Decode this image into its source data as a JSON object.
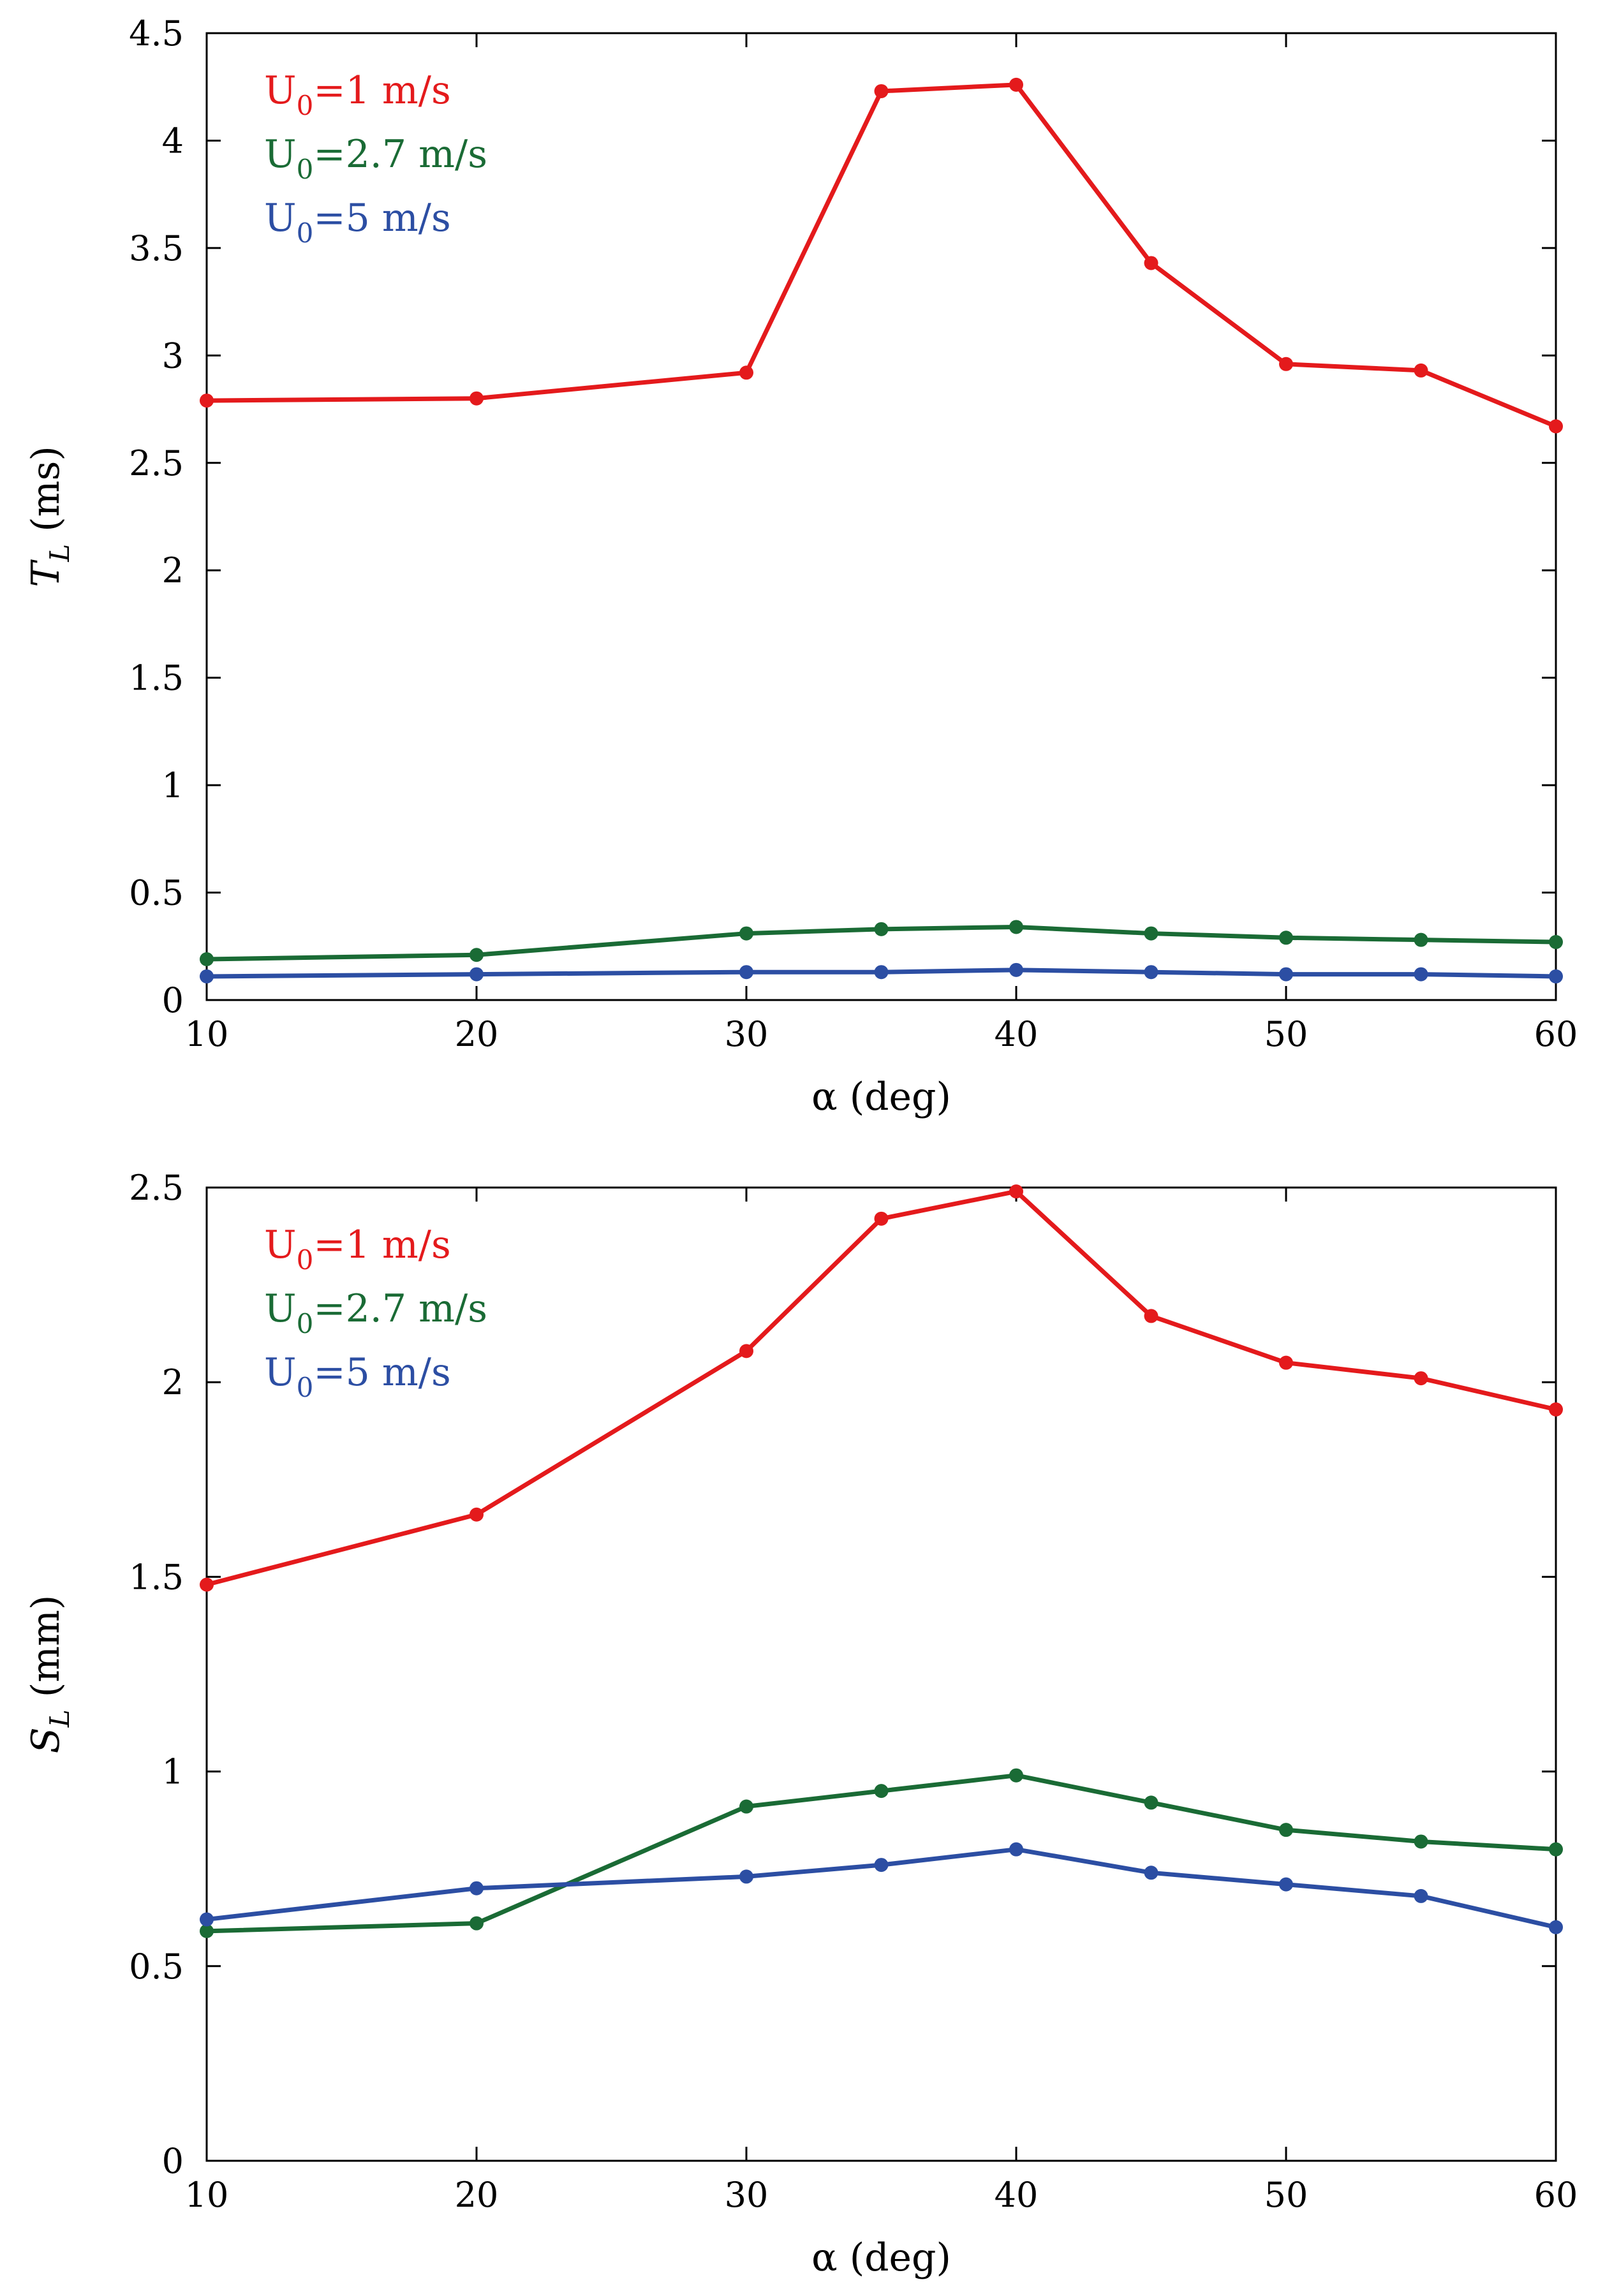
{
  "chart_data": [
    {
      "type": "line",
      "title": "",
      "xlabel": "α (deg)",
      "ylabel": {
        "symbol": "T",
        "subscript": "L",
        "unit": " (ms)"
      },
      "xlim": [
        10,
        60
      ],
      "ylim": [
        0,
        4.5
      ],
      "xticks": [
        "10",
        "20",
        "30",
        "40",
        "50",
        "60"
      ],
      "yticks": [
        "0",
        "0.5",
        "1",
        "1.5",
        "2",
        "2.5",
        "3",
        "3.5",
        "4",
        "4.5"
      ],
      "x": [
        10,
        20,
        30,
        35,
        40,
        45,
        50,
        55,
        60
      ],
      "grid": false,
      "legend_position": "top-left",
      "series": [
        {
          "name": "U0=1 m/s",
          "label_main": "U",
          "label_sub": "0",
          "label_rest": "=1 m/s",
          "color": "#e41a1c",
          "values": [
            2.79,
            2.8,
            2.92,
            4.23,
            4.26,
            3.43,
            2.96,
            2.93,
            2.67
          ]
        },
        {
          "name": "U0=2.7 m/s",
          "label_main": "U",
          "label_sub": "0",
          "label_rest": "=2.7 m/s",
          "color": "#1a6b35",
          "values": [
            0.19,
            0.21,
            0.31,
            0.33,
            0.34,
            0.31,
            0.29,
            0.28,
            0.27
          ]
        },
        {
          "name": "U0=5 m/s",
          "label_main": "U",
          "label_sub": "0",
          "label_rest": "=5 m/s",
          "color": "#2c4ea3",
          "values": [
            0.11,
            0.12,
            0.13,
            0.13,
            0.14,
            0.13,
            0.12,
            0.12,
            0.11
          ]
        }
      ]
    },
    {
      "type": "line",
      "title": "",
      "xlabel": "α (deg)",
      "ylabel": {
        "symbol": "S",
        "subscript": "L",
        "unit": " (mm)"
      },
      "xlim": [
        10,
        60
      ],
      "ylim": [
        0,
        2.5
      ],
      "xticks": [
        "10",
        "20",
        "30",
        "40",
        "50",
        "60"
      ],
      "yticks": [
        "0",
        "0.5",
        "1",
        "1.5",
        "2",
        "2.5"
      ],
      "x": [
        10,
        20,
        30,
        35,
        40,
        45,
        50,
        55,
        60
      ],
      "grid": false,
      "legend_position": "top-left",
      "series": [
        {
          "name": "U0=1 m/s",
          "label_main": "U",
          "label_sub": "0",
          "label_rest": "=1 m/s",
          "color": "#e41a1c",
          "values": [
            1.48,
            1.66,
            2.08,
            2.42,
            2.49,
            2.17,
            2.05,
            2.01,
            1.93
          ]
        },
        {
          "name": "U0=2.7 m/s",
          "label_main": "U",
          "label_sub": "0",
          "label_rest": "=2.7 m/s",
          "color": "#1a6b35",
          "values": [
            0.59,
            0.61,
            0.91,
            0.95,
            0.99,
            0.92,
            0.85,
            0.82,
            0.8
          ]
        },
        {
          "name": "U0=5 m/s",
          "label_main": "U",
          "label_sub": "0",
          "label_rest": "=5 m/s",
          "color": "#2c4ea3",
          "values": [
            0.62,
            0.7,
            0.73,
            0.76,
            0.8,
            0.74,
            0.71,
            0.68,
            0.6
          ]
        }
      ]
    }
  ]
}
